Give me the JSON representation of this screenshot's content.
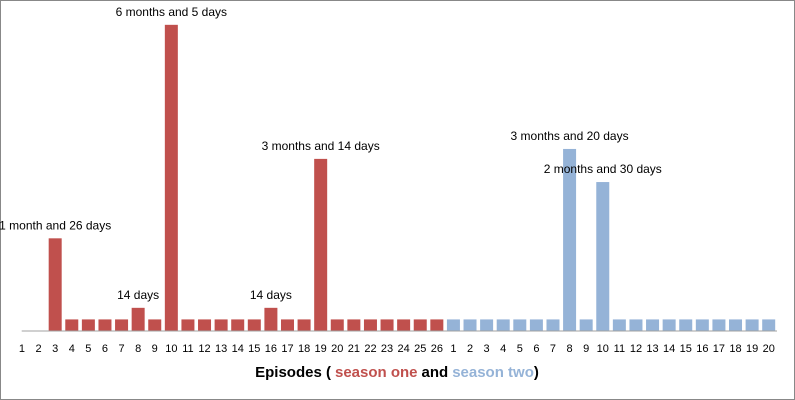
{
  "chart_data": {
    "type": "bar",
    "x_label_parts": [
      "Episodes (",
      "and",
      ")"
    ],
    "ylim": [
      0,
      200
    ],
    "grid": false,
    "series": [
      {
        "name": "season one",
        "color": "#c0504d",
        "categories": [
          1,
          2,
          3,
          4,
          5,
          6,
          7,
          8,
          9,
          10,
          11,
          12,
          13,
          14,
          15,
          16,
          17,
          18,
          19,
          20,
          21,
          22,
          23,
          24,
          25,
          26
        ],
        "values": [
          0,
          0,
          56,
          7,
          7,
          7,
          7,
          14,
          7,
          185,
          7,
          7,
          7,
          7,
          7,
          14,
          7,
          7,
          104,
          7,
          7,
          7,
          7,
          7,
          7,
          7
        ],
        "value_labels": [
          null,
          null,
          "1 month and 26 days",
          null,
          null,
          null,
          null,
          "14 days",
          null,
          "6 months and 5 days",
          null,
          null,
          null,
          null,
          null,
          "14 days",
          null,
          null,
          "3 months and 14 days",
          null,
          null,
          null,
          null,
          null,
          null,
          null
        ]
      },
      {
        "name": "season two",
        "color": "#95b3d7",
        "categories": [
          1,
          2,
          3,
          4,
          5,
          6,
          7,
          8,
          9,
          10,
          11,
          12,
          13,
          14,
          15,
          16,
          17,
          18,
          19,
          20
        ],
        "values": [
          7,
          7,
          7,
          7,
          7,
          7,
          7,
          110,
          7,
          90,
          7,
          7,
          7,
          7,
          7,
          7,
          7,
          7,
          7,
          7
        ],
        "value_labels": [
          null,
          null,
          null,
          null,
          null,
          null,
          null,
          "3 months and 20 days",
          null,
          "2 months and 30 days",
          null,
          null,
          null,
          null,
          null,
          null,
          null,
          null,
          null,
          null
        ]
      }
    ]
  }
}
